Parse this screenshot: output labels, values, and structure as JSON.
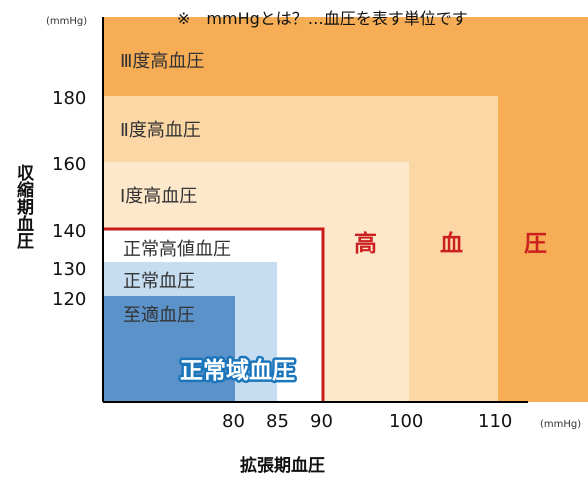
{
  "note": "※　mmHgとは？…血圧を表す単位です",
  "units": {
    "y": "(mmHg)",
    "x": "(mmHg)"
  },
  "axes": {
    "y_title": "収縮期血圧",
    "x_title": "拡張期血圧",
    "y_ticks": [
      "180",
      "160",
      "140",
      "130",
      "120"
    ],
    "x_ticks": [
      "80",
      "85",
      "90",
      "100",
      "110"
    ]
  },
  "zones": [
    {
      "key": "grade3",
      "label": "Ⅲ度高血圧",
      "color": "#f6ad56"
    },
    {
      "key": "grade2",
      "label": "Ⅱ度高血圧",
      "color": "#fbd7a6"
    },
    {
      "key": "grade1",
      "label": "Ⅰ度高血圧",
      "color": "#fde8cc"
    },
    {
      "key": "high_normal",
      "label": "正常高値血圧",
      "color": "#ffffff"
    },
    {
      "key": "normal",
      "label": "正常血圧",
      "color": "#c6dcf0"
    },
    {
      "key": "optimal",
      "label": "至適血圧",
      "color": "#5b92c9"
    }
  ],
  "hypertension_label": [
    "高",
    "血",
    "圧"
  ],
  "normal_range_label": "正常域血圧",
  "colors": {
    "hypertension_border": "#c91a1a",
    "hypertension_text": "#cc1f1f",
    "normal_range_text": "#1b75bb",
    "axis": "#000000"
  }
}
